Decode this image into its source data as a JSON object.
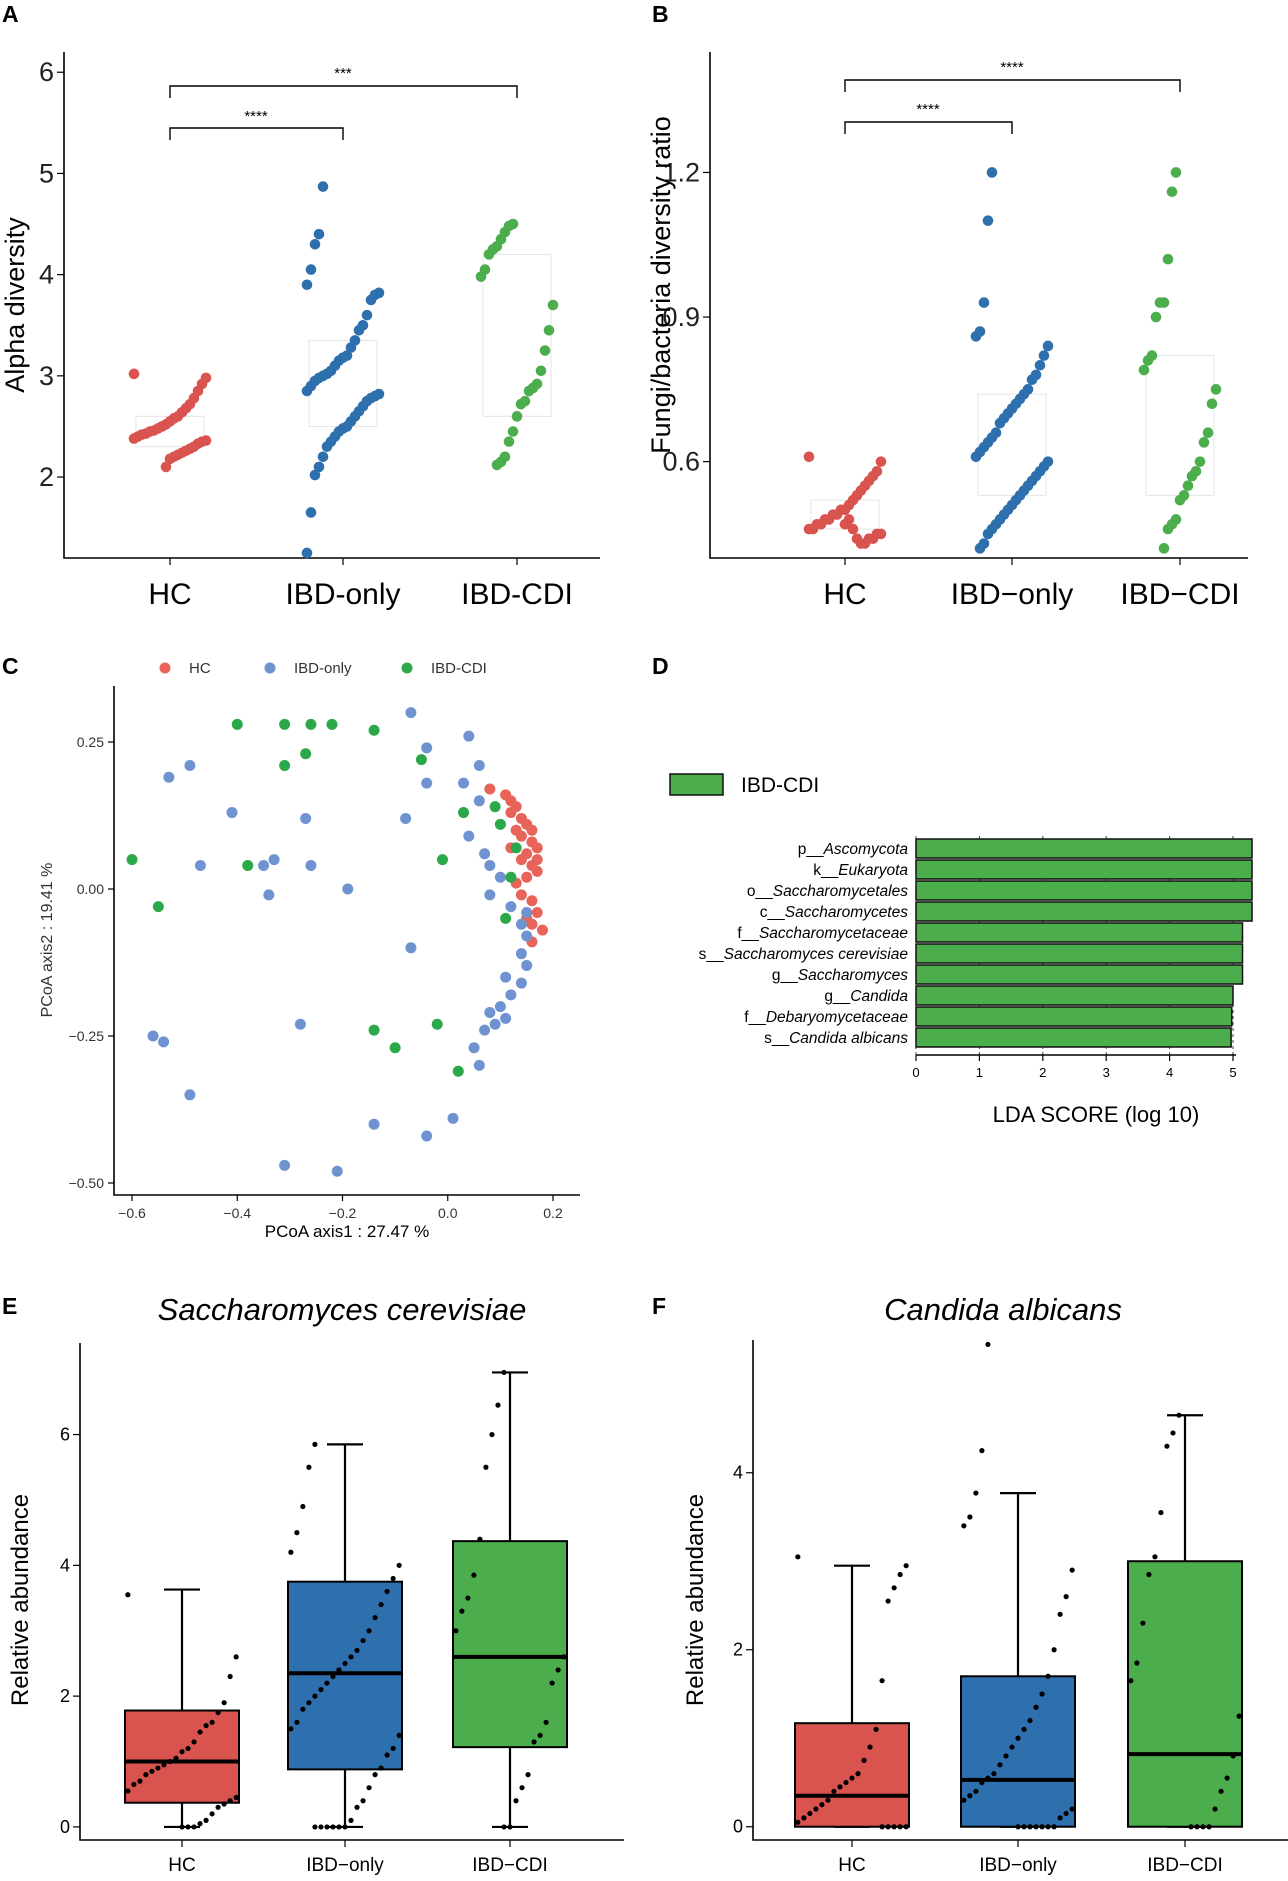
{
  "chart_data": [
    {
      "panel": "A",
      "type": "scatter",
      "ylabel": "Alpha diversity",
      "categories": [
        "HC",
        "IBD-only",
        "IBD-CDI"
      ],
      "y_ticks": [
        "2",
        "3",
        "4",
        "5",
        "6"
      ],
      "ylim": [
        1.2,
        6.2
      ],
      "significance": [
        {
          "from": "HC",
          "to": "IBD-only",
          "label": "****"
        },
        {
          "from": "HC",
          "to": "IBD-CDI",
          "label": "***"
        }
      ],
      "colors": [
        "#d9534f",
        "#2e6fad",
        "#4cad4c"
      ],
      "series": [
        {
          "name": "HC",
          "values": [
            3.02,
            2.98,
            2.92,
            2.85,
            2.78,
            2.72,
            2.68,
            2.64,
            2.6,
            2.58,
            2.55,
            2.52,
            2.5,
            2.48,
            2.46,
            2.45,
            2.43,
            2.42,
            2.4,
            2.38,
            2.36,
            2.35,
            2.33,
            2.3,
            2.28,
            2.26,
            2.24,
            2.22,
            2.2,
            2.18,
            2.1
          ]
        },
        {
          "name": "IBD-only",
          "values": [
            4.87,
            4.4,
            4.3,
            4.05,
            3.9,
            3.82,
            3.8,
            3.75,
            3.6,
            3.5,
            3.45,
            3.35,
            3.28,
            3.2,
            3.18,
            3.15,
            3.1,
            3.05,
            3.02,
            3.0,
            2.98,
            2.95,
            2.9,
            2.85,
            2.82,
            2.8,
            2.78,
            2.75,
            2.7,
            2.65,
            2.6,
            2.55,
            2.5,
            2.48,
            2.45,
            2.4,
            2.35,
            2.3,
            2.2,
            2.1,
            2.02,
            1.65,
            1.25
          ]
        },
        {
          "name": "IBD-CDI",
          "values": [
            4.5,
            4.48,
            4.42,
            4.35,
            4.28,
            4.25,
            4.2,
            4.05,
            3.98,
            3.7,
            3.45,
            3.25,
            3.05,
            2.92,
            2.88,
            2.85,
            2.75,
            2.72,
            2.6,
            2.45,
            2.35,
            2.2,
            2.15,
            2.12
          ]
        }
      ]
    },
    {
      "panel": "B",
      "type": "scatter",
      "ylabel": "Fungi/bacteria diversity ratio",
      "categories": [
        "HC",
        "IBD−only",
        "IBD−CDI"
      ],
      "y_ticks": [
        "0.6",
        "0.9",
        "1.2"
      ],
      "ylim": [
        0.4,
        1.45
      ],
      "significance": [
        {
          "from": "HC",
          "to": "IBD-only",
          "label": "****"
        },
        {
          "from": "HC",
          "to": "IBD-CDI",
          "label": "****"
        }
      ],
      "colors": [
        "#d9534f",
        "#2e6fad",
        "#4cad4c"
      ],
      "series": [
        {
          "name": "HC",
          "values": [
            0.61,
            0.6,
            0.58,
            0.57,
            0.56,
            0.55,
            0.54,
            0.53,
            0.52,
            0.51,
            0.5,
            0.5,
            0.49,
            0.49,
            0.48,
            0.48,
            0.47,
            0.47,
            0.46,
            0.46,
            0.45,
            0.45,
            0.44,
            0.44,
            0.43,
            0.43,
            0.44,
            0.46,
            0.48,
            0.47
          ]
        },
        {
          "name": "IBD-only",
          "values": [
            1.2,
            1.1,
            0.93,
            0.87,
            0.86,
            0.84,
            0.82,
            0.8,
            0.78,
            0.77,
            0.75,
            0.74,
            0.73,
            0.72,
            0.71,
            0.7,
            0.69,
            0.68,
            0.66,
            0.65,
            0.64,
            0.63,
            0.62,
            0.61,
            0.6,
            0.59,
            0.58,
            0.57,
            0.56,
            0.55,
            0.54,
            0.53,
            0.52,
            0.51,
            0.5,
            0.49,
            0.48,
            0.47,
            0.46,
            0.45,
            0.43,
            0.42
          ]
        },
        {
          "name": "IBD-CDI",
          "values": [
            1.2,
            1.16,
            1.02,
            0.93,
            0.93,
            0.9,
            0.82,
            0.81,
            0.79,
            0.75,
            0.72,
            0.66,
            0.64,
            0.6,
            0.58,
            0.57,
            0.55,
            0.53,
            0.52,
            0.48,
            0.47,
            0.46,
            0.42
          ]
        }
      ]
    },
    {
      "panel": "C",
      "type": "scatter",
      "xlabel": "PCoA axis1 : 27.47 %",
      "ylabel": "PCoA axis2 : 19.41 %",
      "x_ticks": [
        "−0.6",
        "−0.4",
        "−0.2",
        "0.0",
        "0.2"
      ],
      "y_ticks": [
        "0.25",
        "0.00",
        "−0.25",
        "−0.50"
      ],
      "xlim": [
        -0.62,
        0.25
      ],
      "ylim": [
        -0.52,
        0.35
      ],
      "legend": [
        "HC",
        "IBD-only",
        "IBD-CDI"
      ],
      "colors": [
        "#e8645a",
        "#6f93d1",
        "#2aa84a"
      ],
      "series": [
        {
          "name": "HC",
          "points": [
            [
              0.08,
              0.17
            ],
            [
              0.11,
              0.16
            ],
            [
              0.12,
              0.15
            ],
            [
              0.13,
              0.14
            ],
            [
              0.12,
              0.13
            ],
            [
              0.14,
              0.12
            ],
            [
              0.15,
              0.11
            ],
            [
              0.16,
              0.1
            ],
            [
              0.13,
              0.1
            ],
            [
              0.14,
              0.09
            ],
            [
              0.16,
              0.08
            ],
            [
              0.17,
              0.07
            ],
            [
              0.15,
              0.06
            ],
            [
              0.14,
              0.05
            ],
            [
              0.16,
              0.04
            ],
            [
              0.17,
              0.03
            ],
            [
              0.15,
              0.02
            ],
            [
              0.13,
              0.01
            ],
            [
              0.14,
              -0.01
            ],
            [
              0.16,
              -0.02
            ],
            [
              0.17,
              -0.04
            ],
            [
              0.15,
              -0.05
            ],
            [
              0.16,
              -0.06
            ],
            [
              0.18,
              -0.07
            ],
            [
              0.16,
              -0.09
            ],
            [
              0.17,
              0.05
            ],
            [
              0.12,
              0.07
            ]
          ]
        },
        {
          "name": "IBD-only",
          "points": [
            [
              -0.07,
              0.3
            ],
            [
              -0.04,
              0.24
            ],
            [
              0.04,
              0.26
            ],
            [
              0.06,
              0.21
            ],
            [
              -0.04,
              0.18
            ],
            [
              0.03,
              0.18
            ],
            [
              0.06,
              0.15
            ],
            [
              -0.08,
              0.12
            ],
            [
              0.04,
              0.09
            ],
            [
              0.07,
              0.06
            ],
            [
              0.08,
              0.04
            ],
            [
              0.1,
              0.02
            ],
            [
              0.08,
              -0.01
            ],
            [
              0.12,
              -0.03
            ],
            [
              0.15,
              -0.04
            ],
            [
              0.14,
              -0.06
            ],
            [
              0.15,
              -0.08
            ],
            [
              0.14,
              -0.11
            ],
            [
              0.15,
              -0.13
            ],
            [
              0.11,
              -0.15
            ],
            [
              0.14,
              -0.16
            ],
            [
              0.12,
              -0.18
            ],
            [
              0.1,
              -0.2
            ],
            [
              0.08,
              -0.21
            ],
            [
              0.11,
              -0.22
            ],
            [
              0.09,
              -0.23
            ],
            [
              0.07,
              -0.24
            ],
            [
              0.05,
              -0.27
            ],
            [
              0.06,
              -0.3
            ],
            [
              0.01,
              -0.39
            ],
            [
              -0.04,
              -0.42
            ],
            [
              -0.14,
              -0.4
            ],
            [
              -0.21,
              -0.48
            ],
            [
              -0.31,
              -0.47
            ],
            [
              -0.28,
              -0.23
            ],
            [
              -0.07,
              -0.1
            ],
            [
              -0.19,
              0.0
            ],
            [
              -0.26,
              0.04
            ],
            [
              -0.33,
              0.05
            ],
            [
              -0.35,
              0.04
            ],
            [
              -0.34,
              -0.01
            ],
            [
              -0.27,
              0.12
            ],
            [
              -0.41,
              0.13
            ],
            [
              -0.47,
              0.04
            ],
            [
              -0.49,
              0.21
            ],
            [
              -0.53,
              0.19
            ],
            [
              -0.56,
              -0.25
            ],
            [
              -0.54,
              -0.26
            ],
            [
              -0.49,
              -0.35
            ]
          ]
        },
        {
          "name": "IBD-CDI",
          "points": [
            [
              -0.4,
              0.28
            ],
            [
              -0.31,
              0.28
            ],
            [
              -0.26,
              0.28
            ],
            [
              -0.22,
              0.28
            ],
            [
              -0.14,
              0.27
            ],
            [
              -0.31,
              0.21
            ],
            [
              -0.27,
              0.23
            ],
            [
              -0.05,
              0.22
            ],
            [
              -0.6,
              0.05
            ],
            [
              -0.38,
              0.04
            ],
            [
              -0.55,
              -0.03
            ],
            [
              0.03,
              0.13
            ],
            [
              0.09,
              0.14
            ],
            [
              0.1,
              0.11
            ],
            [
              -0.01,
              0.05
            ],
            [
              0.12,
              0.02
            ],
            [
              0.13,
              0.07
            ],
            [
              0.11,
              -0.05
            ],
            [
              -0.14,
              -0.24
            ],
            [
              -0.1,
              -0.27
            ],
            [
              -0.02,
              -0.23
            ],
            [
              0.02,
              -0.31
            ]
          ]
        }
      ]
    },
    {
      "panel": "D",
      "type": "bar",
      "orientation": "horizontal",
      "legend": "IBD-CDI",
      "xlabel": "LDA SCORE (log 10)",
      "x_ticks": [
        "0",
        "1",
        "2",
        "3",
        "4",
        "5"
      ],
      "xlim": [
        0,
        5.3
      ],
      "color": "#4cad4c",
      "categories": [
        {
          "prefix": "p__",
          "name": "Ascomycota"
        },
        {
          "prefix": "k__",
          "name": "Eukaryota"
        },
        {
          "prefix": "o__",
          "name": "Saccharomycetales"
        },
        {
          "prefix": "c__",
          "name": "Saccharomycetes"
        },
        {
          "prefix": "f__",
          "name": "Saccharomycetaceae"
        },
        {
          "prefix": "s__",
          "name": "Saccharomyces cerevisiae"
        },
        {
          "prefix": "g__",
          "name": "Saccharomyces"
        },
        {
          "prefix": "g__",
          "name": "Candida"
        },
        {
          "prefix": "f__",
          "name": "Debaryomycetaceae"
        },
        {
          "prefix": "s__",
          "name": "Candida albicans"
        }
      ],
      "values": [
        5.3,
        5.3,
        5.3,
        5.3,
        5.15,
        5.15,
        5.15,
        5.0,
        4.98,
        4.97
      ]
    },
    {
      "panel": "E",
      "type": "box",
      "title": "Saccharomyces cerevisiae",
      "ylabel": "Relative abundance",
      "categories": [
        "HC",
        "IBD−only",
        "IBD−CDI"
      ],
      "y_ticks": [
        "0",
        "2",
        "4",
        "6"
      ],
      "ylim": [
        -0.2,
        7.4
      ],
      "colors": [
        "#d9534f",
        "#2e6fad",
        "#4cad4c"
      ],
      "boxes": [
        {
          "min": 0,
          "q1": 0.37,
          "median": 1.0,
          "q3": 1.78,
          "max": 3.63
        },
        {
          "min": 0,
          "q1": 0.88,
          "median": 2.35,
          "q3": 3.75,
          "max": 5.85
        },
        {
          "min": 0,
          "q1": 1.22,
          "median": 2.6,
          "q3": 4.37,
          "max": 6.95
        }
      ],
      "points": [
        [
          3.55,
          2.6,
          2.3,
          1.9,
          1.75,
          1.6,
          1.55,
          1.45,
          1.3,
          1.2,
          1.15,
          1.05,
          1.0,
          0.95,
          0.9,
          0.85,
          0.8,
          0.7,
          0.65,
          0.55,
          0.45,
          0.4,
          0.35,
          0.3,
          0.2,
          0.1,
          0.05,
          0,
          0,
          0
        ],
        [
          5.85,
          5.5,
          4.9,
          4.5,
          4.2,
          4.0,
          3.8,
          3.6,
          3.4,
          3.2,
          3.0,
          2.85,
          2.7,
          2.6,
          2.5,
          2.4,
          2.3,
          2.2,
          2.1,
          2.0,
          1.9,
          1.8,
          1.6,
          1.5,
          1.4,
          1.2,
          1.1,
          0.9,
          0.8,
          0.6,
          0.4,
          0.3,
          0.1,
          0,
          0,
          0,
          0,
          0,
          0
        ],
        [
          6.95,
          6.45,
          6.0,
          5.5,
          4.4,
          3.85,
          3.5,
          3.3,
          3.0,
          2.6,
          2.4,
          2.2,
          1.6,
          1.4,
          1.3,
          0.8,
          0.6,
          0.4,
          0,
          0
        ]
      ]
    },
    {
      "panel": "F",
      "type": "box",
      "title": "Candida albicans",
      "ylabel": "Relative abundance",
      "categories": [
        "HC",
        "IBD−only",
        "IBD−CDI"
      ],
      "y_ticks": [
        "0",
        "2",
        "4"
      ],
      "ylim": [
        -0.15,
        5.5
      ],
      "colors": [
        "#d9534f",
        "#2e6fad",
        "#4cad4c"
      ],
      "boxes": [
        {
          "min": 0,
          "q1": 0,
          "median": 0.35,
          "q3": 1.17,
          "max": 2.95
        },
        {
          "min": 0,
          "q1": 0,
          "median": 0.53,
          "q3": 1.7,
          "max": 3.77
        },
        {
          "min": 0,
          "q1": 0,
          "median": 0.82,
          "q3": 3.0,
          "max": 4.65
        }
      ],
      "points": [
        [
          3.05,
          2.95,
          2.85,
          2.7,
          2.55,
          1.65,
          1.1,
          0.9,
          0.75,
          0.6,
          0.55,
          0.5,
          0.45,
          0.4,
          0.3,
          0.25,
          0.2,
          0.15,
          0.1,
          0.05,
          0,
          0,
          0,
          0,
          0
        ],
        [
          5.45,
          4.25,
          3.77,
          3.5,
          3.4,
          2.9,
          2.6,
          2.4,
          2.0,
          1.7,
          1.5,
          1.35,
          1.2,
          1.1,
          1.0,
          0.9,
          0.8,
          0.7,
          0.6,
          0.55,
          0.5,
          0.4,
          0.35,
          0.3,
          0.2,
          0.15,
          0.1,
          0,
          0,
          0,
          0,
          0,
          0,
          0
        ],
        [
          4.65,
          4.45,
          4.3,
          3.55,
          3.05,
          2.85,
          2.3,
          1.85,
          1.65,
          1.25,
          0.8,
          0.55,
          0.4,
          0.2,
          0,
          0,
          0,
          0
        ]
      ]
    }
  ]
}
